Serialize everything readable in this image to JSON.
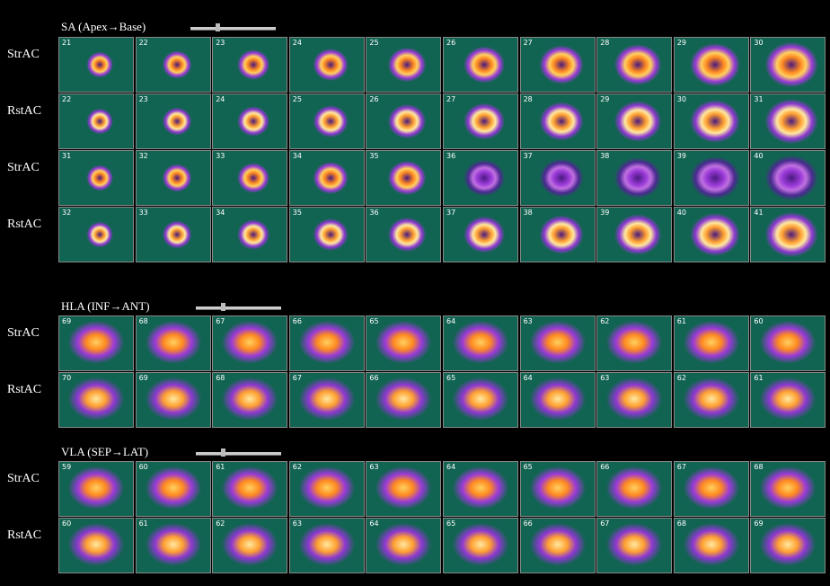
{
  "sections": [
    {
      "title": "SA (Apex→Base)",
      "rows": [
        {
          "label": "StrAC",
          "frames": [
            "21",
            "22",
            "23",
            "24",
            "25",
            "26",
            "27",
            "28",
            "29",
            "30"
          ]
        },
        {
          "label": "RstAC",
          "frames": [
            "22",
            "23",
            "24",
            "25",
            "26",
            "27",
            "28",
            "29",
            "30",
            "31"
          ]
        },
        {
          "label": "StrAC",
          "frames": [
            "31",
            "32",
            "33",
            "34",
            "35",
            "36",
            "37",
            "38",
            "39",
            "40"
          ]
        },
        {
          "label": "RstAC",
          "frames": [
            "32",
            "33",
            "34",
            "35",
            "36",
            "37",
            "38",
            "39",
            "40",
            "41"
          ]
        }
      ]
    },
    {
      "title": "HLA (INF→ANT)",
      "rows": [
        {
          "label": "StrAC",
          "frames": [
            "69",
            "68",
            "67",
            "66",
            "65",
            "64",
            "63",
            "62",
            "61",
            "60"
          ]
        },
        {
          "label": "RstAC",
          "frames": [
            "70",
            "69",
            "68",
            "67",
            "66",
            "65",
            "64",
            "63",
            "62",
            "61"
          ]
        }
      ]
    },
    {
      "title": "VLA (SEP→LAT)",
      "rows": [
        {
          "label": "StrAC",
          "frames": [
            "59",
            "60",
            "61",
            "62",
            "63",
            "64",
            "65",
            "66",
            "67",
            "68"
          ]
        },
        {
          "label": "RstAC",
          "frames": [
            "60",
            "61",
            "62",
            "63",
            "64",
            "65",
            "66",
            "67",
            "68",
            "69"
          ]
        }
      ]
    }
  ]
}
